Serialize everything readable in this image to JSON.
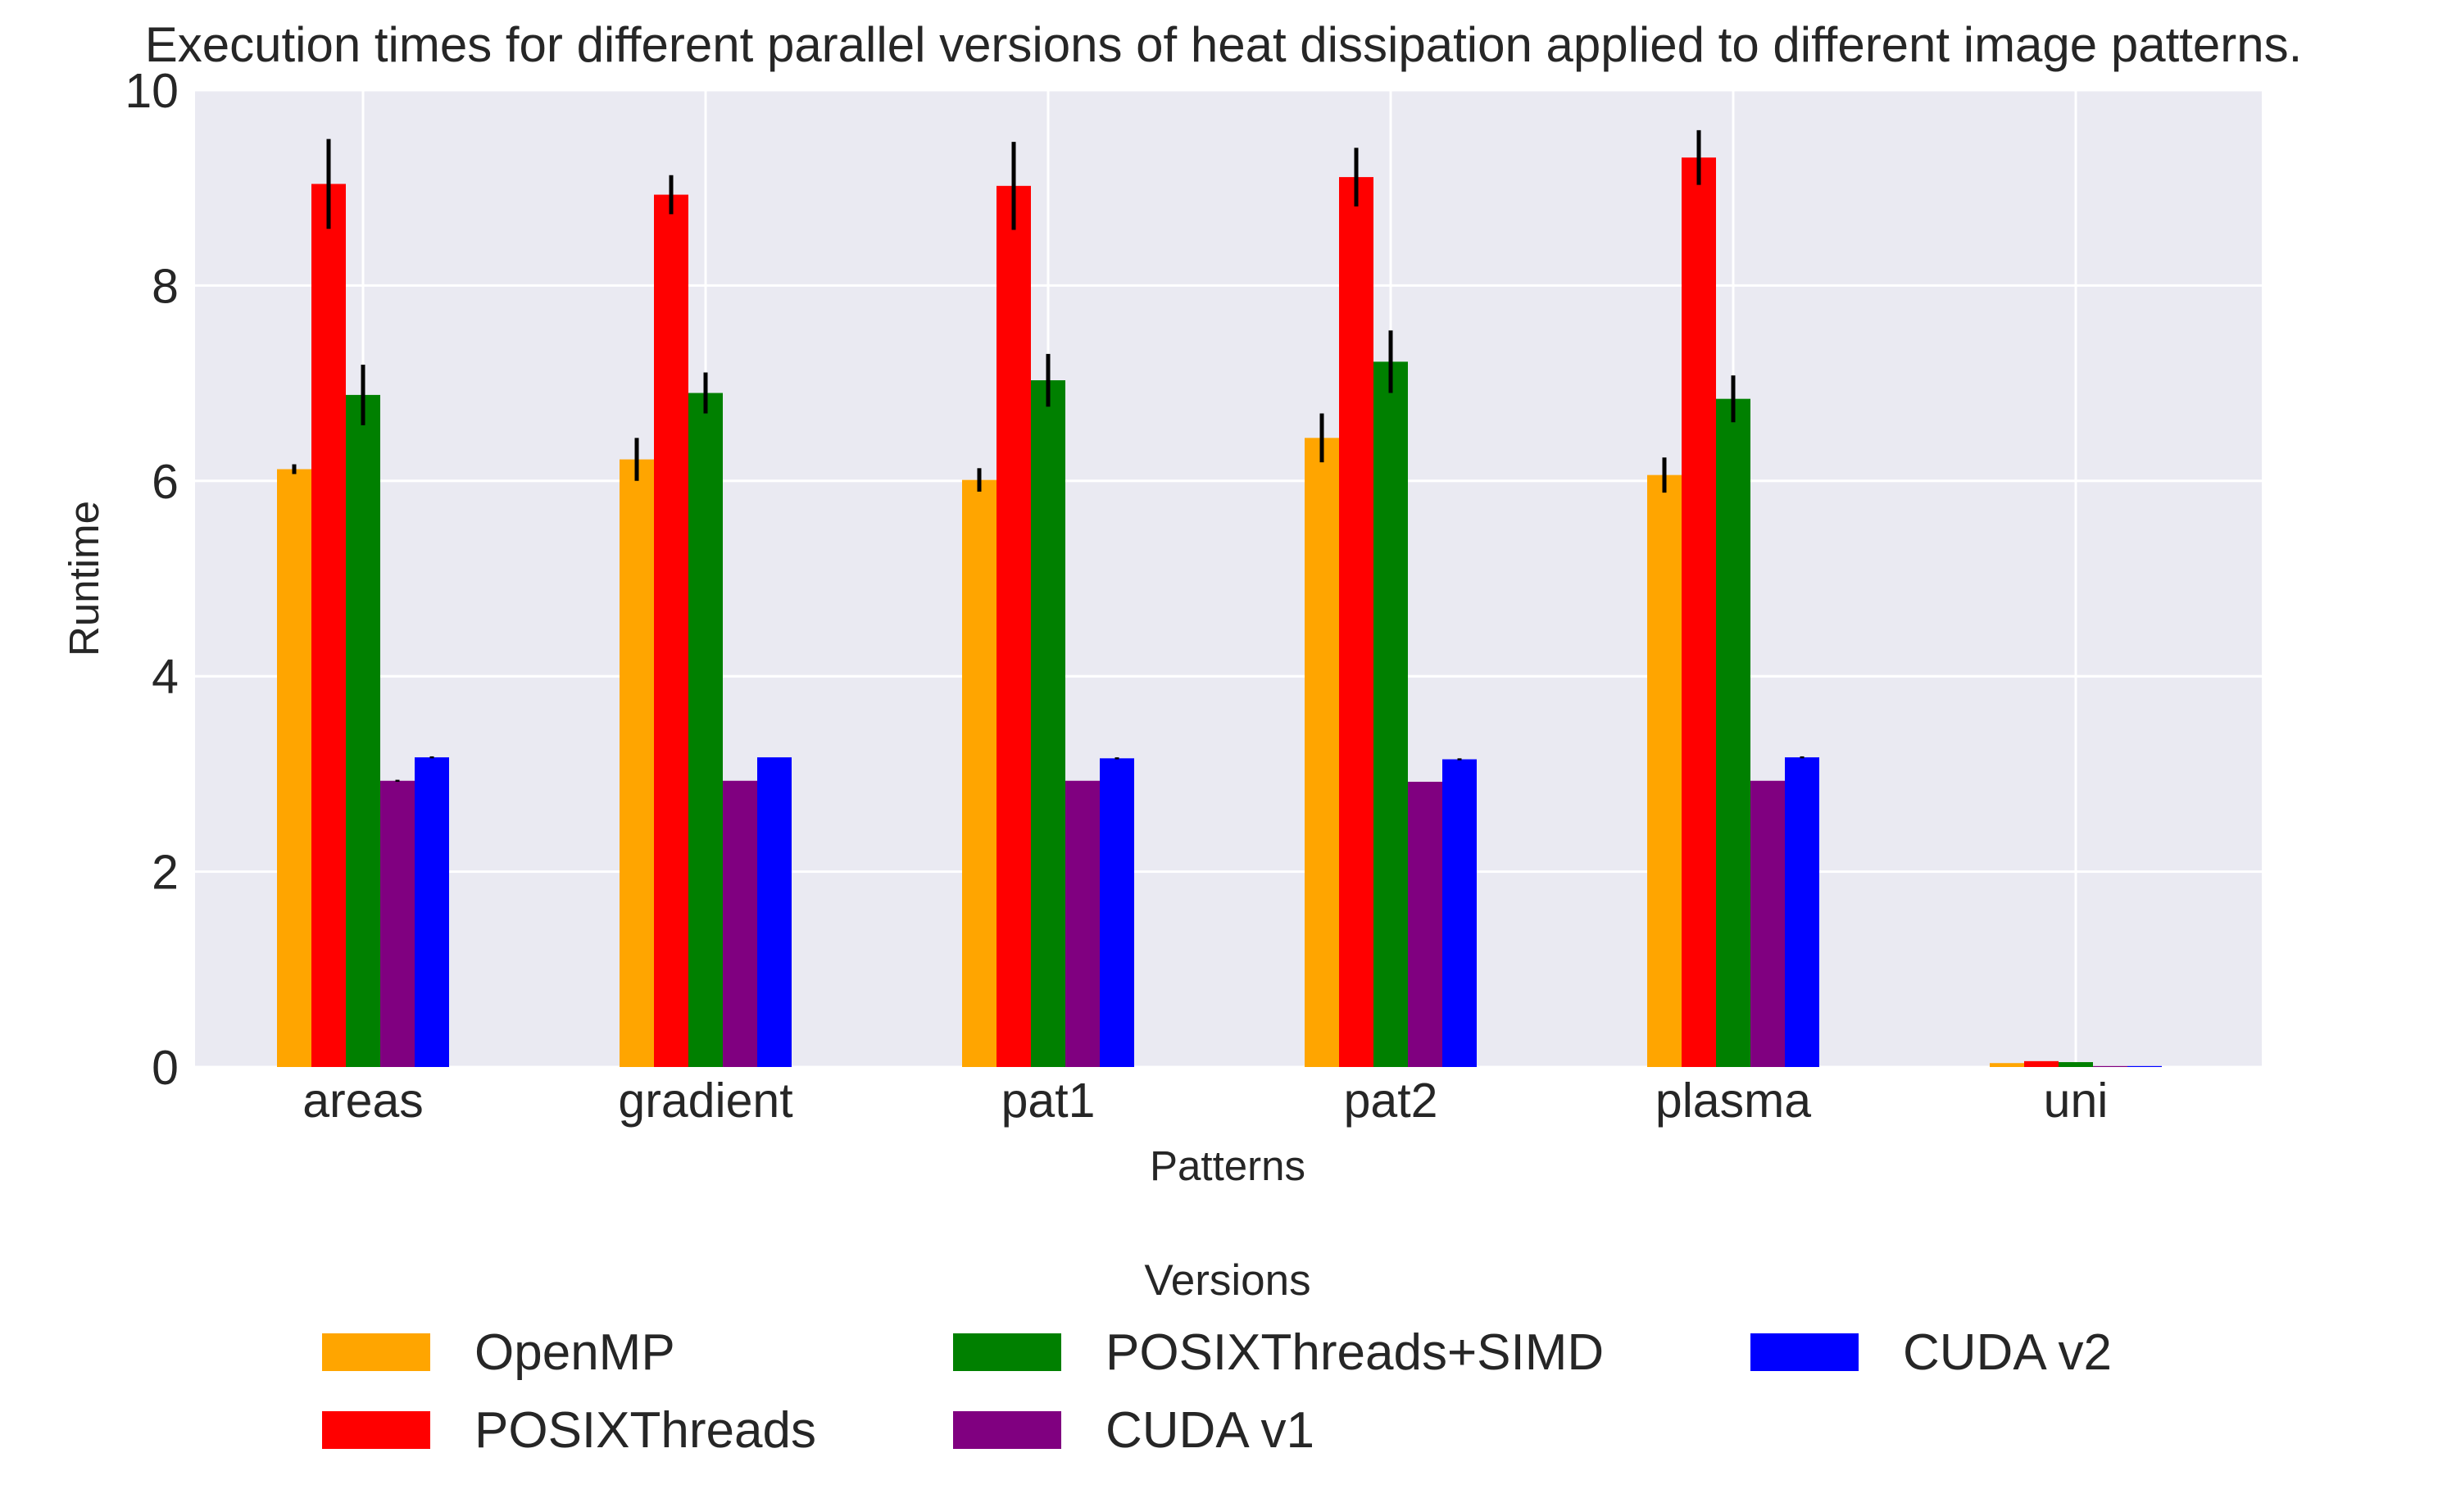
{
  "chart_data": {
    "type": "bar",
    "title": "Execution times for different parallel versions of heat dissipation applied to different image patterns.",
    "xlabel": "Patterns",
    "ylabel": "Runtime",
    "categories": [
      "areas",
      "gradient",
      "pat1",
      "pat2",
      "plasma",
      "uni"
    ],
    "ylim": [
      0,
      10
    ],
    "yticks": [
      0,
      2,
      4,
      6,
      8,
      10
    ],
    "grid": true,
    "legend": {
      "title": "Versions",
      "placement": "bottom-center"
    },
    "series": [
      {
        "name": "OpenMP",
        "color": "#FFA500",
        "values": [
          6.12,
          6.22,
          6.01,
          6.44,
          6.06,
          0.04
        ],
        "errors": [
          0.05,
          0.22,
          0.12,
          0.25,
          0.18,
          0.0
        ]
      },
      {
        "name": "POSIXThreads",
        "color": "#FF0000",
        "values": [
          9.04,
          8.93,
          9.02,
          9.11,
          9.31,
          0.06
        ],
        "errors": [
          0.46,
          0.2,
          0.45,
          0.3,
          0.28,
          0.0
        ]
      },
      {
        "name": "POSIXThreads+SIMD",
        "color": "#008000",
        "values": [
          6.88,
          6.9,
          7.03,
          7.22,
          6.84,
          0.05
        ],
        "errors": [
          0.31,
          0.21,
          0.27,
          0.32,
          0.24,
          0.0
        ]
      },
      {
        "name": "CUDA v1",
        "color": "#800080",
        "values": [
          2.93,
          2.93,
          2.93,
          2.92,
          2.93,
          0.01
        ],
        "errors": [
          0.01,
          0.0,
          0.0,
          0.0,
          0.0,
          0.0
        ]
      },
      {
        "name": "CUDA v2",
        "color": "#0000FF",
        "values": [
          3.17,
          3.17,
          3.16,
          3.15,
          3.17,
          0.01
        ],
        "errors": [
          0.01,
          0.0,
          0.01,
          0.01,
          0.01,
          0.0
        ]
      }
    ]
  }
}
